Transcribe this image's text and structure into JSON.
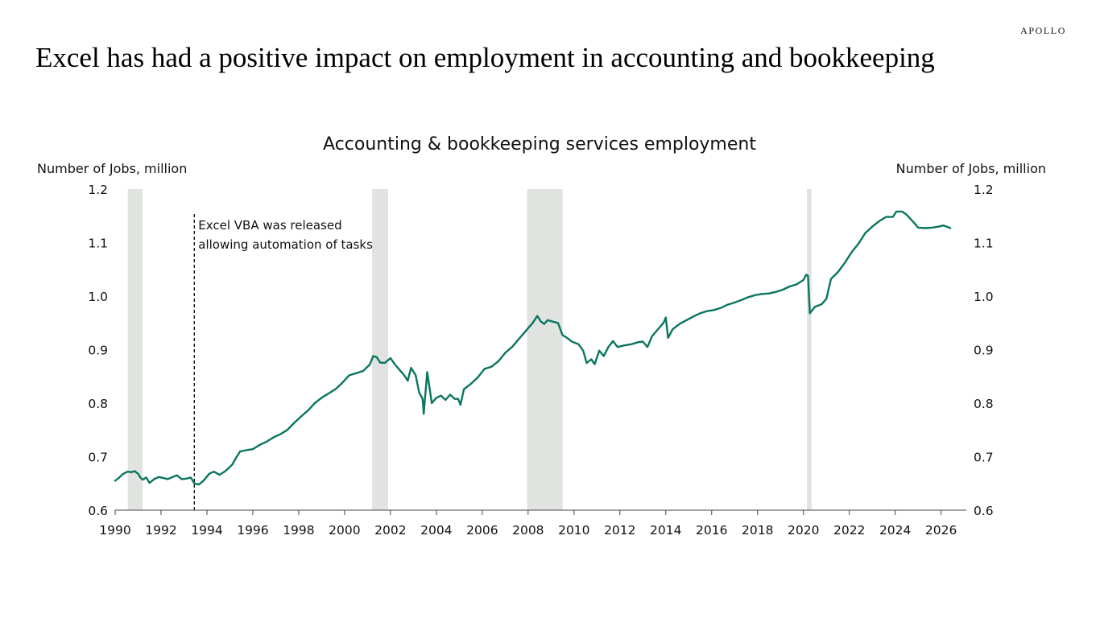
{
  "brand": "APOLLO",
  "headline": "Excel has had a positive impact on employment in accounting and bookkeeping",
  "chart_data": {
    "type": "line",
    "title": "Accounting & bookkeeping services employment",
    "ylabel_left": "Number of Jobs, million",
    "ylabel_right": "Number of Jobs, million",
    "xlim": [
      1990,
      2027.1
    ],
    "ylim": [
      0.6,
      1.2
    ],
    "yticks": [
      "0.6",
      "0.7",
      "0.8",
      "0.9",
      "1.0",
      "1.1",
      "1.2"
    ],
    "xticks": [
      "1990",
      "1992",
      "1994",
      "1996",
      "1998",
      "2000",
      "2002",
      "2004",
      "2006",
      "2008",
      "2010",
      "2012",
      "2014",
      "2016",
      "2018",
      "2020",
      "2022",
      "2024",
      "2026"
    ],
    "grid": false,
    "colors": {
      "line": "#0a7560",
      "recession": "#e1e3e1",
      "annotation_line": "#000000"
    },
    "recessions": [
      [
        1990.55,
        1991.2
      ],
      [
        2001.2,
        2001.9
      ],
      [
        2007.95,
        2009.5
      ],
      [
        2020.15,
        2020.35
      ]
    ],
    "annotation": {
      "x": 1993.45,
      "lines": [
        "Excel VBA was released",
        "allowing automation of tasks"
      ]
    },
    "series": [
      {
        "points": [
          [
            1990.0,
            0.655
          ],
          [
            1990.15,
            0.66
          ],
          [
            1990.35,
            0.668
          ],
          [
            1990.55,
            0.672
          ],
          [
            1990.7,
            0.671
          ],
          [
            1990.85,
            0.673
          ],
          [
            1991.0,
            0.668
          ],
          [
            1991.1,
            0.661
          ],
          [
            1991.2,
            0.657
          ],
          [
            1991.35,
            0.661
          ],
          [
            1991.5,
            0.651
          ],
          [
            1991.7,
            0.658
          ],
          [
            1991.9,
            0.662
          ],
          [
            1992.1,
            0.66
          ],
          [
            1992.3,
            0.658
          ],
          [
            1992.5,
            0.662
          ],
          [
            1992.7,
            0.665
          ],
          [
            1992.9,
            0.658
          ],
          [
            1993.1,
            0.659
          ],
          [
            1993.3,
            0.661
          ],
          [
            1993.45,
            0.65
          ],
          [
            1993.65,
            0.648
          ],
          [
            1993.85,
            0.655
          ],
          [
            1994.1,
            0.668
          ],
          [
            1994.3,
            0.672
          ],
          [
            1994.55,
            0.666
          ],
          [
            1994.8,
            0.673
          ],
          [
            1995.1,
            0.685
          ],
          [
            1995.3,
            0.7
          ],
          [
            1995.45,
            0.71
          ],
          [
            1995.7,
            0.712
          ],
          [
            1996.0,
            0.714
          ],
          [
            1996.3,
            0.722
          ],
          [
            1996.6,
            0.728
          ],
          [
            1996.9,
            0.736
          ],
          [
            1997.2,
            0.742
          ],
          [
            1997.5,
            0.75
          ],
          [
            1997.8,
            0.763
          ],
          [
            1998.1,
            0.775
          ],
          [
            1998.4,
            0.786
          ],
          [
            1998.7,
            0.8
          ],
          [
            1999.0,
            0.81
          ],
          [
            1999.3,
            0.818
          ],
          [
            1999.6,
            0.826
          ],
          [
            1999.9,
            0.838
          ],
          [
            2000.2,
            0.852
          ],
          [
            2000.5,
            0.856
          ],
          [
            2000.8,
            0.86
          ],
          [
            2001.1,
            0.872
          ],
          [
            2001.25,
            0.888
          ],
          [
            2001.4,
            0.886
          ],
          [
            2001.55,
            0.876
          ],
          [
            2001.75,
            0.875
          ],
          [
            2002.0,
            0.884
          ],
          [
            2002.2,
            0.872
          ],
          [
            2002.4,
            0.862
          ],
          [
            2002.6,
            0.852
          ],
          [
            2002.75,
            0.842
          ],
          [
            2002.9,
            0.866
          ],
          [
            2003.1,
            0.852
          ],
          [
            2003.25,
            0.82
          ],
          [
            2003.4,
            0.808
          ],
          [
            2003.45,
            0.78
          ],
          [
            2003.6,
            0.858
          ],
          [
            2003.8,
            0.8
          ],
          [
            2004.0,
            0.81
          ],
          [
            2004.2,
            0.814
          ],
          [
            2004.4,
            0.806
          ],
          [
            2004.6,
            0.816
          ],
          [
            2004.8,
            0.808
          ],
          [
            2004.95,
            0.808
          ],
          [
            2005.05,
            0.797
          ],
          [
            2005.2,
            0.826
          ],
          [
            2005.5,
            0.836
          ],
          [
            2005.8,
            0.848
          ],
          [
            2006.1,
            0.864
          ],
          [
            2006.4,
            0.868
          ],
          [
            2006.7,
            0.878
          ],
          [
            2007.0,
            0.894
          ],
          [
            2007.3,
            0.905
          ],
          [
            2007.6,
            0.92
          ],
          [
            2007.9,
            0.935
          ],
          [
            2008.2,
            0.95
          ],
          [
            2008.4,
            0.963
          ],
          [
            2008.55,
            0.953
          ],
          [
            2008.7,
            0.948
          ],
          [
            2008.85,
            0.955
          ],
          [
            2009.1,
            0.952
          ],
          [
            2009.3,
            0.95
          ],
          [
            2009.5,
            0.927
          ],
          [
            2009.7,
            0.922
          ],
          [
            2009.9,
            0.915
          ],
          [
            2010.2,
            0.91
          ],
          [
            2010.4,
            0.898
          ],
          [
            2010.55,
            0.875
          ],
          [
            2010.75,
            0.882
          ],
          [
            2010.9,
            0.873
          ],
          [
            2011.1,
            0.898
          ],
          [
            2011.3,
            0.888
          ],
          [
            2011.5,
            0.905
          ],
          [
            2011.7,
            0.916
          ],
          [
            2011.9,
            0.905
          ],
          [
            2012.2,
            0.908
          ],
          [
            2012.5,
            0.91
          ],
          [
            2012.8,
            0.914
          ],
          [
            2013.0,
            0.915
          ],
          [
            2013.2,
            0.905
          ],
          [
            2013.4,
            0.925
          ],
          [
            2013.7,
            0.94
          ],
          [
            2013.9,
            0.95
          ],
          [
            2014.0,
            0.96
          ],
          [
            2014.1,
            0.922
          ],
          [
            2014.3,
            0.938
          ],
          [
            2014.6,
            0.948
          ],
          [
            2014.9,
            0.955
          ],
          [
            2015.2,
            0.962
          ],
          [
            2015.5,
            0.968
          ],
          [
            2015.8,
            0.972
          ],
          [
            2016.1,
            0.974
          ],
          [
            2016.4,
            0.978
          ],
          [
            2016.7,
            0.984
          ],
          [
            2017.0,
            0.988
          ],
          [
            2017.3,
            0.993
          ],
          [
            2017.6,
            0.998
          ],
          [
            2017.9,
            1.002
          ],
          [
            2018.2,
            1.004
          ],
          [
            2018.5,
            1.005
          ],
          [
            2018.8,
            1.008
          ],
          [
            2019.1,
            1.012
          ],
          [
            2019.4,
            1.018
          ],
          [
            2019.7,
            1.022
          ],
          [
            2020.0,
            1.03
          ],
          [
            2020.12,
            1.04
          ],
          [
            2020.2,
            1.038
          ],
          [
            2020.28,
            0.968
          ],
          [
            2020.5,
            0.98
          ],
          [
            2020.8,
            0.985
          ],
          [
            2021.0,
            0.995
          ],
          [
            2021.2,
            1.032
          ],
          [
            2021.5,
            1.045
          ],
          [
            2021.8,
            1.062
          ],
          [
            2022.1,
            1.082
          ],
          [
            2022.4,
            1.098
          ],
          [
            2022.7,
            1.118
          ],
          [
            2023.0,
            1.13
          ],
          [
            2023.3,
            1.14
          ],
          [
            2023.6,
            1.148
          ],
          [
            2023.9,
            1.148
          ],
          [
            2024.05,
            1.158
          ],
          [
            2024.3,
            1.158
          ],
          [
            2024.5,
            1.152
          ],
          [
            2024.8,
            1.138
          ],
          [
            2025.0,
            1.128
          ],
          [
            2025.3,
            1.127
          ],
          [
            2025.6,
            1.128
          ],
          [
            2025.9,
            1.13
          ],
          [
            2026.1,
            1.132
          ],
          [
            2026.3,
            1.129
          ],
          [
            2026.4,
            1.127
          ]
        ]
      }
    ]
  }
}
